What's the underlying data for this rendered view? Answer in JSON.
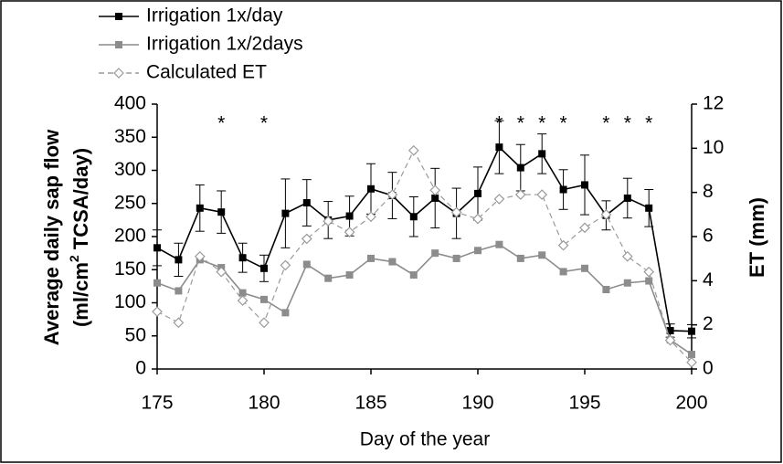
{
  "chart_data": {
    "type": "line",
    "x_label": "Day of the year",
    "y_label": [
      "Average daily sap flow",
      "(ml/cm",
      "2",
      " TCSA/day)"
    ],
    "y2_label": "ET (mm)",
    "x": [
      175,
      176,
      177,
      178,
      179,
      180,
      181,
      182,
      183,
      184,
      185,
      186,
      187,
      188,
      189,
      190,
      191,
      192,
      193,
      194,
      195,
      196,
      197,
      198,
      199,
      200
    ],
    "xlim": [
      175,
      200
    ],
    "xticks": [
      175,
      180,
      185,
      190,
      195,
      200
    ],
    "ylim": [
      0,
      400
    ],
    "yticks": [
      0,
      50,
      100,
      150,
      200,
      250,
      300,
      350,
      400
    ],
    "y2lim": [
      0,
      12
    ],
    "y2ticks": [
      0,
      2,
      4,
      6,
      8,
      10,
      12
    ],
    "series": [
      {
        "name": "Irrigation 1x/day",
        "color": "#000000",
        "marker": "square",
        "dash": false,
        "values": [
          183,
          165,
          243,
          237,
          168,
          152,
          235,
          251,
          225,
          231,
          272,
          262,
          230,
          258,
          235,
          265,
          335,
          304,
          325,
          271,
          278,
          232,
          258,
          243,
          58,
          57
        ],
        "errors": [
          27,
          25,
          35,
          32,
          22,
          20,
          52,
          35,
          28,
          30,
          38,
          35,
          30,
          45,
          38,
          40,
          40,
          35,
          30,
          30,
          45,
          22,
          30,
          28,
          10,
          10
        ]
      },
      {
        "name": "Irrigation 1x/2days",
        "color": "#8c8c8c",
        "marker": "square",
        "dash": false,
        "values": [
          130,
          118,
          165,
          153,
          115,
          105,
          85,
          158,
          137,
          142,
          167,
          162,
          142,
          175,
          167,
          179,
          188,
          167,
          172,
          147,
          152,
          120,
          130,
          133,
          44,
          22
        ]
      },
      {
        "name": "Calculated ET",
        "color": "#9a9a9a",
        "marker": "diamond",
        "dash": true,
        "axis": "y2",
        "values": [
          2.6,
          2.1,
          5.1,
          4.4,
          3.1,
          2.1,
          4.7,
          5.9,
          6.7,
          6.2,
          6.9,
          7.9,
          9.9,
          8.1,
          7.1,
          6.8,
          7.7,
          7.9,
          7.9,
          5.6,
          6.4,
          7.0,
          5.1,
          4.4,
          1.3,
          0.3
        ]
      }
    ],
    "annotations": [
      {
        "text": "*",
        "x": 178
      },
      {
        "text": "*",
        "x": 180
      },
      {
        "text": "*",
        "x": 191
      },
      {
        "text": "*",
        "x": 192
      },
      {
        "text": "*",
        "x": 193
      },
      {
        "text": "*",
        "x": 194
      },
      {
        "text": "*",
        "x": 196
      },
      {
        "text": "*",
        "x": 197
      },
      {
        "text": "*",
        "x": 198
      }
    ]
  }
}
